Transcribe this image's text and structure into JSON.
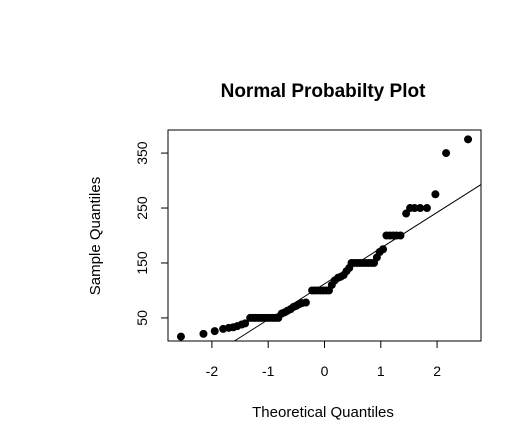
{
  "chart_data": {
    "type": "scatter",
    "title": "Normal Probabilty Plot",
    "xlabel": "Theoretical Quantiles",
    "ylabel": "Sample Quantiles",
    "xlim": [
      -2.78,
      2.78
    ],
    "ylim": [
      8,
      392
    ],
    "xticks": [
      -2,
      -1,
      0,
      1,
      2
    ],
    "yticks": [
      50,
      150,
      250,
      350
    ],
    "grid": false,
    "reference_line": {
      "intercept": 112,
      "slope": 65
    },
    "points": [
      {
        "x": -2.55,
        "y": 16
      },
      {
        "x": -2.15,
        "y": 21
      },
      {
        "x": -1.95,
        "y": 26
      },
      {
        "x": -1.8,
        "y": 30
      },
      {
        "x": -1.7,
        "y": 32
      },
      {
        "x": -1.62,
        "y": 33
      },
      {
        "x": -1.55,
        "y": 35
      },
      {
        "x": -1.47,
        "y": 38
      },
      {
        "x": -1.41,
        "y": 40
      },
      {
        "x": -1.32,
        "y": 50
      },
      {
        "x": -1.27,
        "y": 50
      },
      {
        "x": -1.22,
        "y": 50
      },
      {
        "x": -1.17,
        "y": 50
      },
      {
        "x": -1.12,
        "y": 50
      },
      {
        "x": -1.07,
        "y": 50
      },
      {
        "x": -1.02,
        "y": 50
      },
      {
        "x": -0.97,
        "y": 50
      },
      {
        "x": -0.92,
        "y": 50
      },
      {
        "x": -0.87,
        "y": 50
      },
      {
        "x": -0.82,
        "y": 50
      },
      {
        "x": -0.76,
        "y": 58
      },
      {
        "x": -0.71,
        "y": 60
      },
      {
        "x": -0.66,
        "y": 63
      },
      {
        "x": -0.6,
        "y": 66
      },
      {
        "x": -0.55,
        "y": 70
      },
      {
        "x": -0.5,
        "y": 72
      },
      {
        "x": -0.45,
        "y": 75
      },
      {
        "x": -0.4,
        "y": 77
      },
      {
        "x": -0.33,
        "y": 78
      },
      {
        "x": -0.22,
        "y": 100
      },
      {
        "x": -0.17,
        "y": 100
      },
      {
        "x": -0.12,
        "y": 100
      },
      {
        "x": -0.07,
        "y": 100
      },
      {
        "x": -0.02,
        "y": 100
      },
      {
        "x": 0.03,
        "y": 100
      },
      {
        "x": 0.08,
        "y": 100
      },
      {
        "x": 0.13,
        "y": 110
      },
      {
        "x": 0.18,
        "y": 118
      },
      {
        "x": 0.24,
        "y": 123
      },
      {
        "x": 0.29,
        "y": 125
      },
      {
        "x": 0.34,
        "y": 128
      },
      {
        "x": 0.39,
        "y": 135
      },
      {
        "x": 0.44,
        "y": 141
      },
      {
        "x": 0.48,
        "y": 150
      },
      {
        "x": 0.53,
        "y": 150
      },
      {
        "x": 0.58,
        "y": 150
      },
      {
        "x": 0.63,
        "y": 150
      },
      {
        "x": 0.68,
        "y": 150
      },
      {
        "x": 0.73,
        "y": 150
      },
      {
        "x": 0.78,
        "y": 150
      },
      {
        "x": 0.83,
        "y": 150
      },
      {
        "x": 0.88,
        "y": 150
      },
      {
        "x": 0.93,
        "y": 160
      },
      {
        "x": 0.98,
        "y": 170
      },
      {
        "x": 1.04,
        "y": 175
      },
      {
        "x": 1.1,
        "y": 200
      },
      {
        "x": 1.16,
        "y": 200
      },
      {
        "x": 1.22,
        "y": 200
      },
      {
        "x": 1.28,
        "y": 200
      },
      {
        "x": 1.35,
        "y": 200
      },
      {
        "x": 1.45,
        "y": 240
      },
      {
        "x": 1.52,
        "y": 250
      },
      {
        "x": 1.6,
        "y": 250
      },
      {
        "x": 1.7,
        "y": 250
      },
      {
        "x": 1.82,
        "y": 250
      },
      {
        "x": 1.97,
        "y": 275
      },
      {
        "x": 2.16,
        "y": 350
      },
      {
        "x": 2.55,
        "y": 375
      }
    ]
  }
}
